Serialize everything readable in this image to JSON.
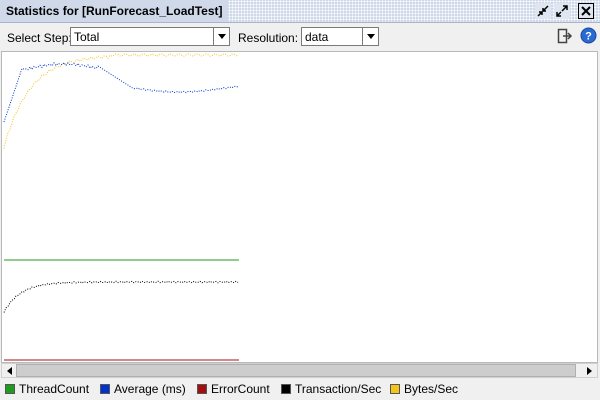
{
  "window": {
    "title": "Statistics for [RunForecast_LoadTest]"
  },
  "toolbar": {
    "select_step_label": "Select Step:",
    "select_step_value": "Total",
    "resolution_label": "Resolution:",
    "resolution_value": "data"
  },
  "legend": {
    "items": [
      {
        "label": "ThreadCount",
        "color": "#1f9b1f"
      },
      {
        "label": "Average (ms)",
        "color": "#0033cc"
      },
      {
        "label": "ErrorCount",
        "color": "#a01010"
      },
      {
        "label": "Transaction/Sec",
        "color": "#000000"
      },
      {
        "label": "Bytes/Sec",
        "color": "#f2c41c"
      }
    ]
  },
  "icons": {
    "restore": "restore-icon",
    "maximize": "maximize-icon",
    "close": "close-icon",
    "export": "export-icon",
    "help": "help-icon"
  }
}
